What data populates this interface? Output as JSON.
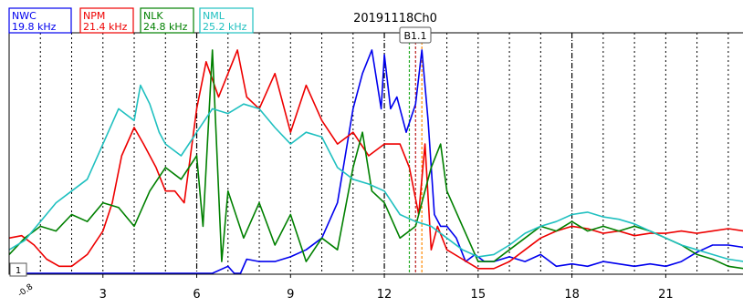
{
  "chart_data": {
    "type": "line",
    "title": "20191118Ch0",
    "xlabel": "",
    "ylabel": "",
    "xlim": [
      0,
      23.5
    ],
    "ylim": [
      0,
      1
    ],
    "grid": "vertical dotted lines every hour, dash-dot at 6-hour marks",
    "x_ticks": [
      3,
      6,
      9,
      12,
      15,
      18,
      21
    ],
    "bottom_left_tick": "-0.8",
    "left_marker_label": "1",
    "event_marker": {
      "label": "B1.1",
      "x": 13.0
    },
    "event_lines": [
      {
        "x": 12.8,
        "color": "#22aa22"
      },
      {
        "x": 13.0,
        "color": "#cc3333"
      },
      {
        "x": 13.2,
        "color": "#ff8800"
      }
    ],
    "series": [
      {
        "name": "NWC",
        "freq": "19.8 kHz",
        "color": "#0000ee",
        "x": [
          0,
          6.5,
          7.0,
          7.2,
          7.4,
          7.6,
          8.0,
          8.5,
          9.0,
          9.5,
          10.0,
          10.5,
          11.0,
          11.3,
          11.6,
          11.9,
          12.0,
          12.2,
          12.4,
          12.7,
          13.0,
          13.2,
          13.4,
          13.6,
          13.8,
          14.0,
          14.3,
          14.6,
          14.9,
          15.2,
          15.5,
          16.0,
          16.5,
          17.0,
          17.5,
          18.0,
          18.5,
          19.0,
          19.5,
          20.0,
          20.5,
          21.0,
          21.5,
          22.0,
          22.5,
          23.0,
          23.5
        ],
        "y": [
          0.0,
          0.0,
          0.03,
          0.0,
          0.0,
          0.06,
          0.05,
          0.05,
          0.07,
          0.1,
          0.15,
          0.3,
          0.7,
          0.85,
          0.95,
          0.7,
          0.93,
          0.7,
          0.75,
          0.6,
          0.72,
          0.95,
          0.65,
          0.25,
          0.2,
          0.2,
          0.15,
          0.05,
          0.08,
          0.05,
          0.05,
          0.07,
          0.05,
          0.08,
          0.03,
          0.04,
          0.03,
          0.05,
          0.04,
          0.03,
          0.04,
          0.03,
          0.05,
          0.09,
          0.12,
          0.12,
          0.11
        ]
      },
      {
        "name": "NPM",
        "freq": "21.4 kHz",
        "color": "#ee0000",
        "x": [
          0,
          0.4,
          0.8,
          1.2,
          1.6,
          2.0,
          2.5,
          3.0,
          3.3,
          3.6,
          4.0,
          4.3,
          4.7,
          5.0,
          5.3,
          5.6,
          6.0,
          6.3,
          6.7,
          7.0,
          7.3,
          7.6,
          8.0,
          8.5,
          9.0,
          9.5,
          10.0,
          10.5,
          11.0,
          11.5,
          12.0,
          12.5,
          12.8,
          13.1,
          13.3,
          13.5,
          13.7,
          14.0,
          14.5,
          15.0,
          15.5,
          16.0,
          16.5,
          17.0,
          17.5,
          18.0,
          18.5,
          19.0,
          19.5,
          20.0,
          20.5,
          21.0,
          21.5,
          22.0,
          22.5,
          23.0,
          23.5
        ],
        "y": [
          0.15,
          0.16,
          0.12,
          0.06,
          0.03,
          0.03,
          0.08,
          0.18,
          0.3,
          0.5,
          0.62,
          0.55,
          0.45,
          0.35,
          0.35,
          0.3,
          0.7,
          0.9,
          0.75,
          0.85,
          0.95,
          0.75,
          0.7,
          0.85,
          0.6,
          0.8,
          0.65,
          0.55,
          0.6,
          0.5,
          0.55,
          0.55,
          0.45,
          0.25,
          0.55,
          0.1,
          0.2,
          0.1,
          0.06,
          0.02,
          0.02,
          0.05,
          0.1,
          0.15,
          0.18,
          0.2,
          0.19,
          0.17,
          0.18,
          0.16,
          0.17,
          0.17,
          0.18,
          0.17,
          0.18,
          0.19,
          0.18
        ]
      },
      {
        "name": "NLK",
        "freq": "24.8 kHz",
        "color": "#008000",
        "x": [
          0,
          0.5,
          1.0,
          1.5,
          2.0,
          2.5,
          3.0,
          3.5,
          4.0,
          4.5,
          5.0,
          5.5,
          6.0,
          6.2,
          6.5,
          6.8,
          7.0,
          7.5,
          8.0,
          8.5,
          9.0,
          9.5,
          10.0,
          10.5,
          11.0,
          11.3,
          11.6,
          12.0,
          12.5,
          13.0,
          13.5,
          13.8,
          14.0,
          14.5,
          15.0,
          15.5,
          16.0,
          16.5,
          17.0,
          17.5,
          18.0,
          18.5,
          19.0,
          19.5,
          20.0,
          20.5,
          21.0,
          21.5,
          22.0,
          22.5,
          23.0,
          23.5
        ],
        "y": [
          0.08,
          0.15,
          0.2,
          0.18,
          0.25,
          0.22,
          0.3,
          0.28,
          0.2,
          0.35,
          0.45,
          0.4,
          0.5,
          0.2,
          0.95,
          0.05,
          0.35,
          0.15,
          0.3,
          0.12,
          0.25,
          0.05,
          0.15,
          0.1,
          0.45,
          0.6,
          0.35,
          0.3,
          0.15,
          0.2,
          0.45,
          0.55,
          0.35,
          0.2,
          0.05,
          0.05,
          0.1,
          0.15,
          0.2,
          0.18,
          0.22,
          0.18,
          0.2,
          0.18,
          0.2,
          0.18,
          0.15,
          0.12,
          0.08,
          0.06,
          0.03,
          0.02
        ]
      },
      {
        "name": "NML",
        "freq": "25.2 kHz",
        "color": "#20c0c0",
        "x": [
          0,
          0.5,
          1.0,
          1.5,
          2.0,
          2.5,
          3.0,
          3.5,
          4.0,
          4.2,
          4.5,
          4.8,
          5.0,
          5.5,
          6.0,
          6.5,
          7.0,
          7.5,
          8.0,
          8.5,
          9.0,
          9.5,
          10.0,
          10.5,
          11.0,
          11.5,
          12.0,
          12.5,
          13.0,
          13.5,
          14.0,
          14.5,
          15.0,
          15.5,
          16.0,
          16.5,
          17.0,
          17.5,
          18.0,
          18.5,
          19.0,
          19.5,
          20.0,
          20.5,
          21.0,
          21.5,
          22.0,
          22.5,
          23.0,
          23.5
        ],
        "y": [
          0.1,
          0.14,
          0.22,
          0.3,
          0.35,
          0.4,
          0.55,
          0.7,
          0.65,
          0.8,
          0.72,
          0.6,
          0.55,
          0.5,
          0.6,
          0.7,
          0.68,
          0.72,
          0.7,
          0.62,
          0.55,
          0.6,
          0.58,
          0.45,
          0.4,
          0.38,
          0.35,
          0.25,
          0.22,
          0.2,
          0.15,
          0.1,
          0.07,
          0.08,
          0.12,
          0.17,
          0.2,
          0.22,
          0.25,
          0.26,
          0.24,
          0.23,
          0.21,
          0.18,
          0.15,
          0.12,
          0.1,
          0.08,
          0.06,
          0.05
        ]
      }
    ]
  }
}
